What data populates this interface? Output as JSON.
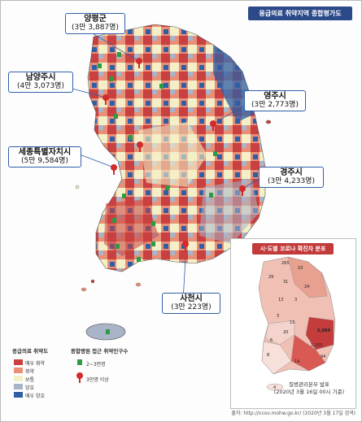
{
  "title": "응급의료 취약지역 종합평가도",
  "callouts": [
    {
      "city": "양평군",
      "detail": "(3만 3,887명)"
    },
    {
      "city": "남양주시",
      "detail": "(4만 3,073명)"
    },
    {
      "city": "영주시",
      "detail": "(3만 2,773명)"
    },
    {
      "city": "세종특별자치시",
      "detail": "(5만 9,584명)"
    },
    {
      "city": "경주시",
      "detail": "(3만 4,233명)"
    },
    {
      "city": "사천시",
      "detail": "(3만 223명)"
    }
  ],
  "inset": {
    "title": "시·도별 코로나 확진자 분포",
    "values": [
      "265",
      "10",
      "29",
      "31",
      "24",
      "13",
      "3",
      "5,084",
      "3",
      "15",
      "1,153",
      "20",
      "6",
      "94",
      "8",
      "14",
      "4"
    ],
    "source_line1": "질병관리본부 발표",
    "source_line2": "(2020년 3월 16일 00시 기준)"
  },
  "legend": {
    "vulnerability_title": "응급의료 취약도",
    "items": [
      {
        "label": "매우 취약",
        "color": "#c8403f"
      },
      {
        "label": "취약",
        "color": "#e98f78"
      },
      {
        "label": "보통",
        "color": "#f4efc7"
      },
      {
        "label": "양호",
        "color": "#aab4c8"
      },
      {
        "label": "매우 양호",
        "color": "#2d5fa6"
      }
    ],
    "pin_title": "종합병원 접근 취약인구수",
    "pin_items": [
      {
        "label": "2~3만명",
        "color": "#2e9a43",
        "icon": "green-pin-icon"
      },
      {
        "label": "3만명 이상",
        "color": "#d42a2a",
        "icon": "red-pushpin-icon"
      }
    ]
  },
  "footer_source": "출처: http://ncov.mohw.go.kr/ (2020년 3월 17일 검색)"
}
